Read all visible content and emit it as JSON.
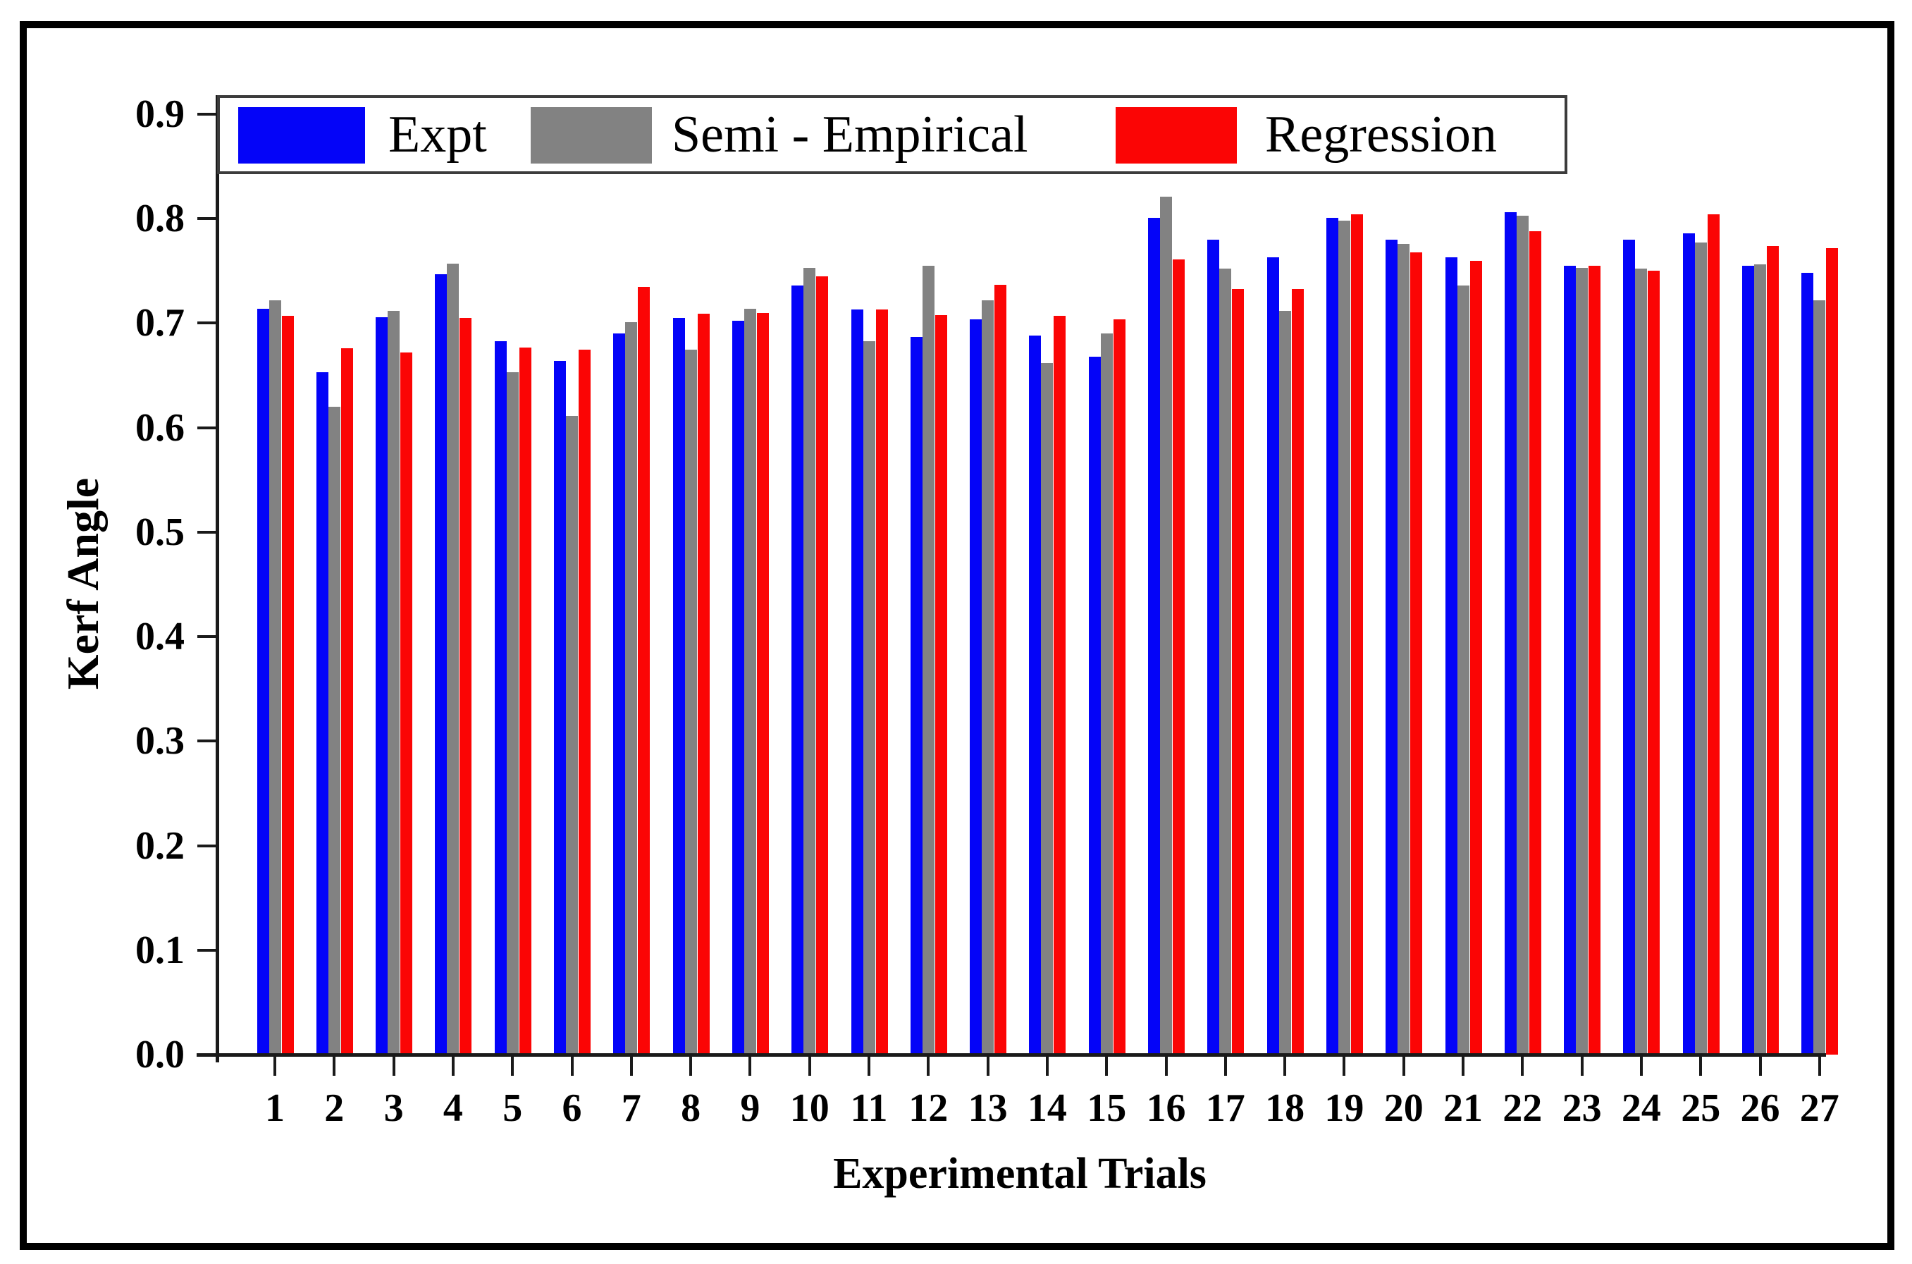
{
  "figure": {
    "background_color": "#ffffff",
    "frame_color": "#000000"
  },
  "chart_data": {
    "type": "bar",
    "title": "",
    "xlabel": "Experimental Trials",
    "ylabel": "Kerf Angle",
    "categories": [
      "1",
      "2",
      "3",
      "4",
      "5",
      "6",
      "7",
      "8",
      "9",
      "10",
      "11",
      "12",
      "13",
      "14",
      "15",
      "16",
      "17",
      "18",
      "19",
      "20",
      "21",
      "22",
      "23",
      "24",
      "25",
      "26",
      "27"
    ],
    "series": [
      {
        "name": "Expt",
        "color": "#0404f8",
        "values": [
          0.714,
          0.653,
          0.706,
          0.747,
          0.683,
          0.664,
          0.69,
          0.705,
          0.702,
          0.736,
          0.713,
          0.687,
          0.704,
          0.688,
          0.668,
          0.801,
          0.78,
          0.763,
          0.801,
          0.78,
          0.763,
          0.806,
          0.755,
          0.78,
          0.786,
          0.755,
          0.748
        ]
      },
      {
        "name": "Semi - Empirical",
        "color": "#828282",
        "values": [
          0.722,
          0.62,
          0.712,
          0.757,
          0.653,
          0.611,
          0.701,
          0.675,
          0.714,
          0.753,
          0.683,
          0.755,
          0.722,
          0.662,
          0.69,
          0.821,
          0.752,
          0.712,
          0.798,
          0.776,
          0.736,
          0.803,
          0.753,
          0.752,
          0.777,
          0.756,
          0.722
        ]
      },
      {
        "name": "Regression",
        "color": "#fb0505",
        "values": [
          0.707,
          0.676,
          0.672,
          0.705,
          0.677,
          0.675,
          0.735,
          0.709,
          0.71,
          0.745,
          0.713,
          0.708,
          0.737,
          0.707,
          0.704,
          0.761,
          0.733,
          0.733,
          0.804,
          0.768,
          0.76,
          0.788,
          0.755,
          0.75,
          0.804,
          0.774,
          0.772
        ]
      }
    ],
    "ylim": [
      0.0,
      0.9
    ],
    "ytick_step": 0.1,
    "ytick_labels": [
      "0.0",
      "0.1",
      "0.2",
      "0.3",
      "0.4",
      "0.5",
      "0.6",
      "0.7",
      "0.8",
      "0.9"
    ],
    "legend_entries": [
      "Expt",
      "Semi - Empirical",
      "Regression"
    ],
    "legend_position": "top-inside",
    "grid": false
  }
}
